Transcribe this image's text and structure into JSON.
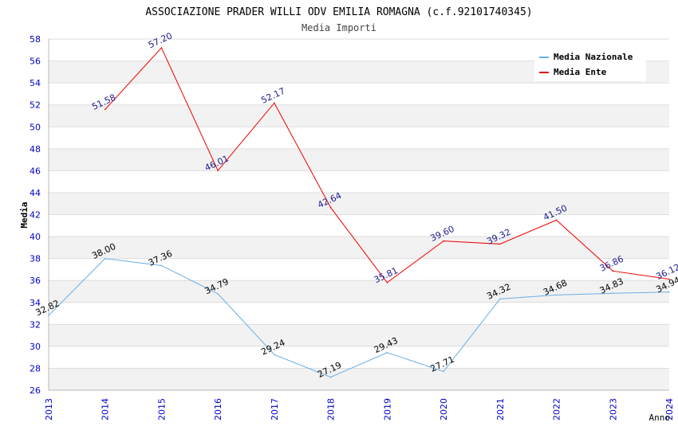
{
  "chart_data": {
    "type": "line",
    "title": "ASSOCIAZIONE PRADER WILLI ODV EMILIA ROMAGNA (c.f.92101740345)",
    "subtitle": "Media Importi",
    "xlabel": "Anno",
    "ylabel": "Media",
    "ylim": [
      26,
      58
    ],
    "ytick_step": 2,
    "x": [
      "2013",
      "2014",
      "2015",
      "2016",
      "2017",
      "2018",
      "2019",
      "2020",
      "2021",
      "2022",
      "2023",
      "2024"
    ],
    "legend_position": "top-right",
    "series": [
      {
        "name": "Media Nazionale",
        "color": "#6aaee6",
        "label_color": "#000000",
        "values": [
          32.82,
          38.0,
          37.36,
          34.79,
          29.24,
          27.19,
          29.43,
          27.71,
          34.32,
          34.68,
          34.83,
          34.94
        ],
        "labels": [
          "32.82",
          "38.00",
          "37.36",
          "34.79",
          "29.24",
          "27.19",
          "29.43",
          "27.71",
          "34.32",
          "34.68",
          "34.83",
          "34.94"
        ]
      },
      {
        "name": "Media Ente",
        "color": "#ee0000",
        "label_color": "#1a1a8c",
        "values": [
          null,
          51.58,
          57.2,
          46.01,
          52.17,
          42.64,
          35.81,
          39.6,
          39.32,
          41.5,
          36.86,
          36.12
        ],
        "labels": [
          null,
          "51.58",
          "57.20",
          "46.01",
          "52.17",
          "42.64",
          "35.81",
          "39.60",
          "39.32",
          "41.50",
          "36.86",
          "36.12"
        ]
      }
    ],
    "colors": {
      "tick_label": "#0000cc",
      "band_light": "#f2f2f2",
      "band_white": "#ffffff",
      "grid": "#dddddd"
    }
  }
}
